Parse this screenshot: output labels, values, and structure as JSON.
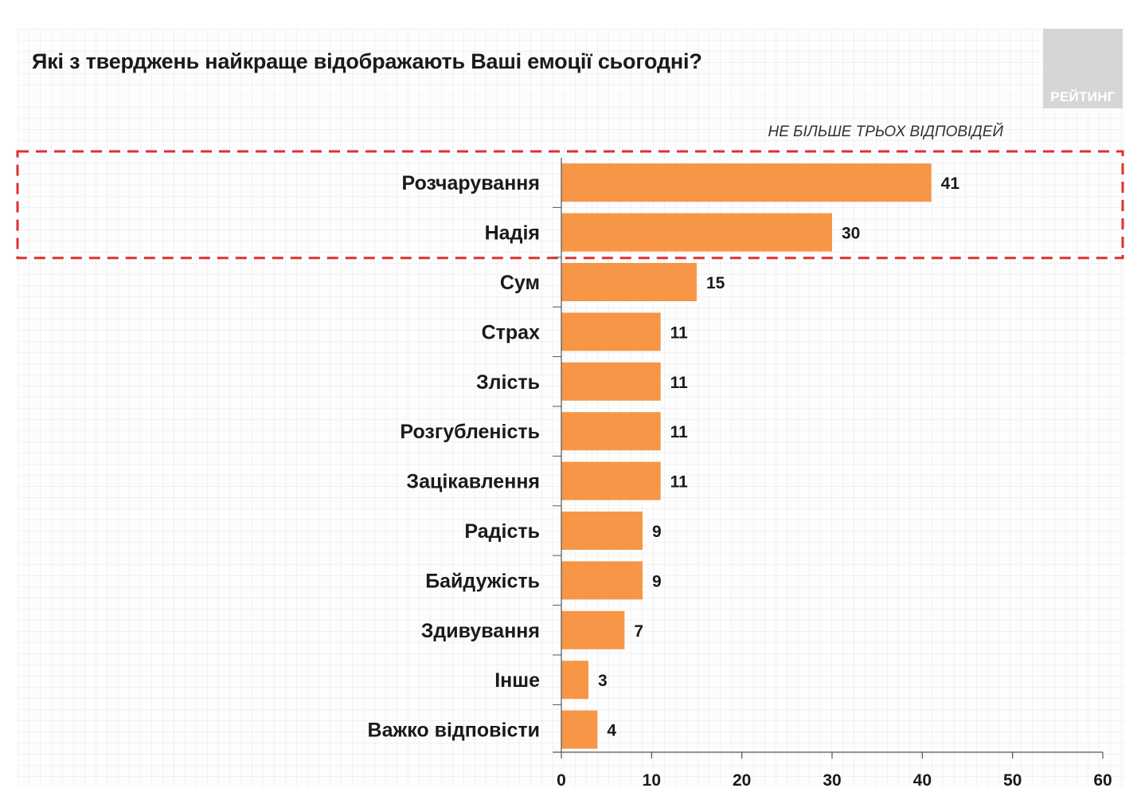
{
  "title": "Які з тверджень найкраще відображають Ваші емоції сьогодні?",
  "logo_text": "РЕЙТИНГ",
  "note": "НЕ БІЛЬШЕ ТРЬОХ ВІДПОВІДЕЙ",
  "colors": {
    "bar": "#F79646",
    "highlight_box": "#E03030",
    "axis": "#555555"
  },
  "chart_data": {
    "type": "bar",
    "orientation": "horizontal",
    "title": "Які з тверджень найкраще відображають Ваші емоції сьогодні?",
    "subtitle": "НЕ БІЛЬШЕ ТРЬОХ ВІДПОВІДЕЙ",
    "categories": [
      "Розчарування",
      "Надія",
      "Сум",
      "Страх",
      "Злість",
      "Розгубленість",
      "Зацікавлення",
      "Радість",
      "Байдужість",
      "Здивування",
      "Інше",
      "Важко відповісти"
    ],
    "values": [
      41,
      30,
      15,
      11,
      11,
      11,
      11,
      9,
      9,
      7,
      3,
      4
    ],
    "xlim": [
      0,
      60
    ],
    "xticks": [
      0,
      10,
      20,
      30,
      40,
      50,
      60
    ],
    "xlabel": "",
    "ylabel": "",
    "highlighted_categories": [
      "Розчарування",
      "Надія"
    ]
  }
}
